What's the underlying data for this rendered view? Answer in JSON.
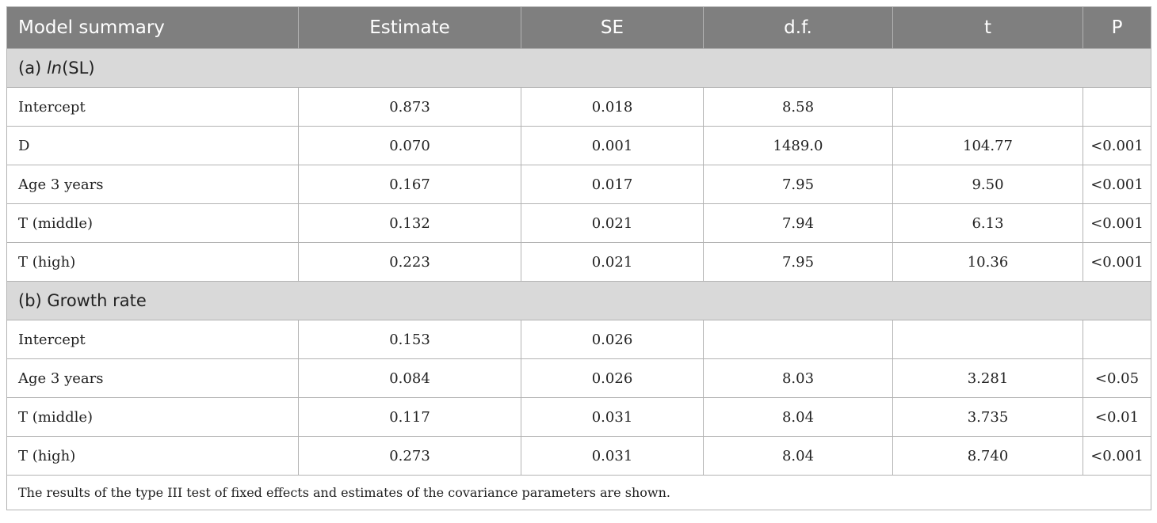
{
  "table": {
    "headers": [
      "Model summary",
      "Estimate",
      "SE",
      "d.f.",
      "t",
      "P"
    ],
    "sections": [
      {
        "title_prefix": "(a) ",
        "title_italic": "ln",
        "title_suffix": "(SL)",
        "rows": [
          [
            "Intercept",
            "0.873",
            "0.018",
            "8.58",
            "",
            ""
          ],
          [
            "D",
            "0.070",
            "0.001",
            "1489.0",
            "104.77",
            "<0.001"
          ],
          [
            "Age 3 years",
            "0.167",
            "0.017",
            "7.95",
            "9.50",
            "<0.001"
          ],
          [
            "T (middle)",
            "0.132",
            "0.021",
            "7.94",
            "6.13",
            "<0.001"
          ],
          [
            "T (high)",
            "0.223",
            "0.021",
            "7.95",
            "10.36",
            "<0.001"
          ]
        ]
      },
      {
        "title_prefix": "(b) Growth rate",
        "title_italic": "",
        "title_suffix": "",
        "rows": [
          [
            "Intercept",
            "0.153",
            "0.026",
            "",
            "",
            ""
          ],
          [
            "Age 3 years",
            "0.084",
            "0.026",
            "8.03",
            "3.281",
            "<0.05"
          ],
          [
            "T (middle)",
            "0.117",
            "0.031",
            "8.04",
            "3.735",
            "<0.01"
          ],
          [
            "T (high)",
            "0.273",
            "0.031",
            "8.04",
            "8.740",
            "<0.001"
          ]
        ]
      }
    ],
    "footnote": "The results of the type III test of fixed effects and estimates of the covariance parameters are shown."
  }
}
